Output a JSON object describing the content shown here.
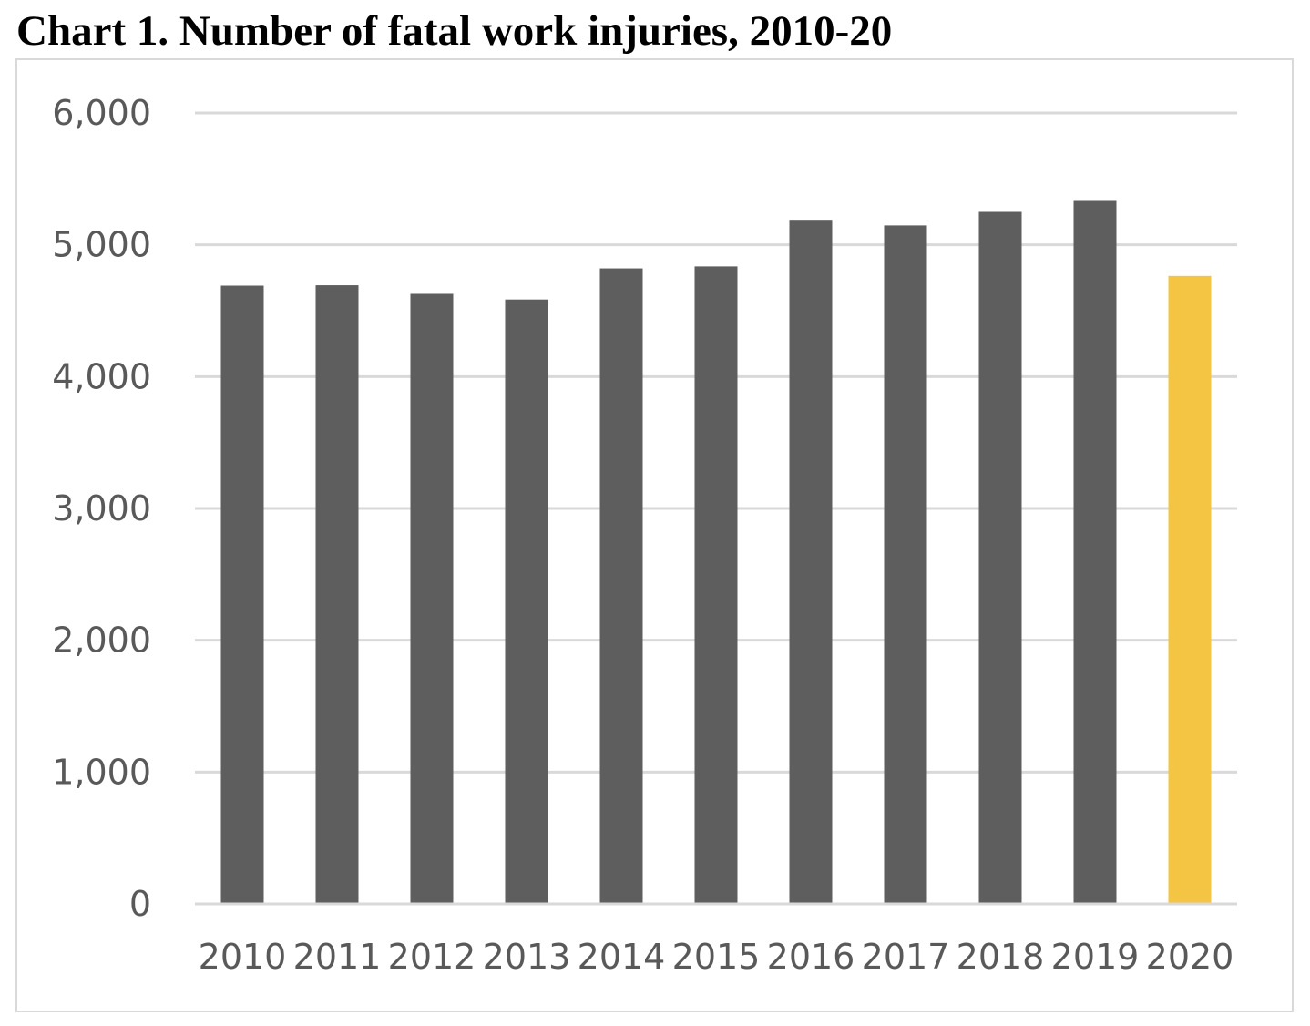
{
  "chart_data": {
    "type": "bar",
    "title": "Chart 1. Number of fatal work injuries, 2010-20",
    "categories": [
      "2010",
      "2011",
      "2012",
      "2013",
      "2014",
      "2015",
      "2016",
      "2017",
      "2018",
      "2019",
      "2020"
    ],
    "values": [
      4690,
      4693,
      4628,
      4585,
      4821,
      4836,
      5190,
      5147,
      5250,
      5333,
      4764
    ],
    "bar_colors": [
      "#5e5e5e",
      "#5e5e5e",
      "#5e5e5e",
      "#5e5e5e",
      "#5e5e5e",
      "#5e5e5e",
      "#5e5e5e",
      "#5e5e5e",
      "#5e5e5e",
      "#5e5e5e",
      "#f4c542"
    ],
    "ylim": [
      0,
      6000
    ],
    "yticks": [
      0,
      1000,
      2000,
      3000,
      4000,
      5000,
      6000
    ],
    "ytick_labels": [
      "0",
      "1,000",
      "2,000",
      "3,000",
      "4,000",
      "5,000",
      "6,000"
    ],
    "xlabel": "",
    "ylabel": "",
    "grid": true,
    "gridline_color": "#d9d9d9",
    "legend": "none"
  }
}
